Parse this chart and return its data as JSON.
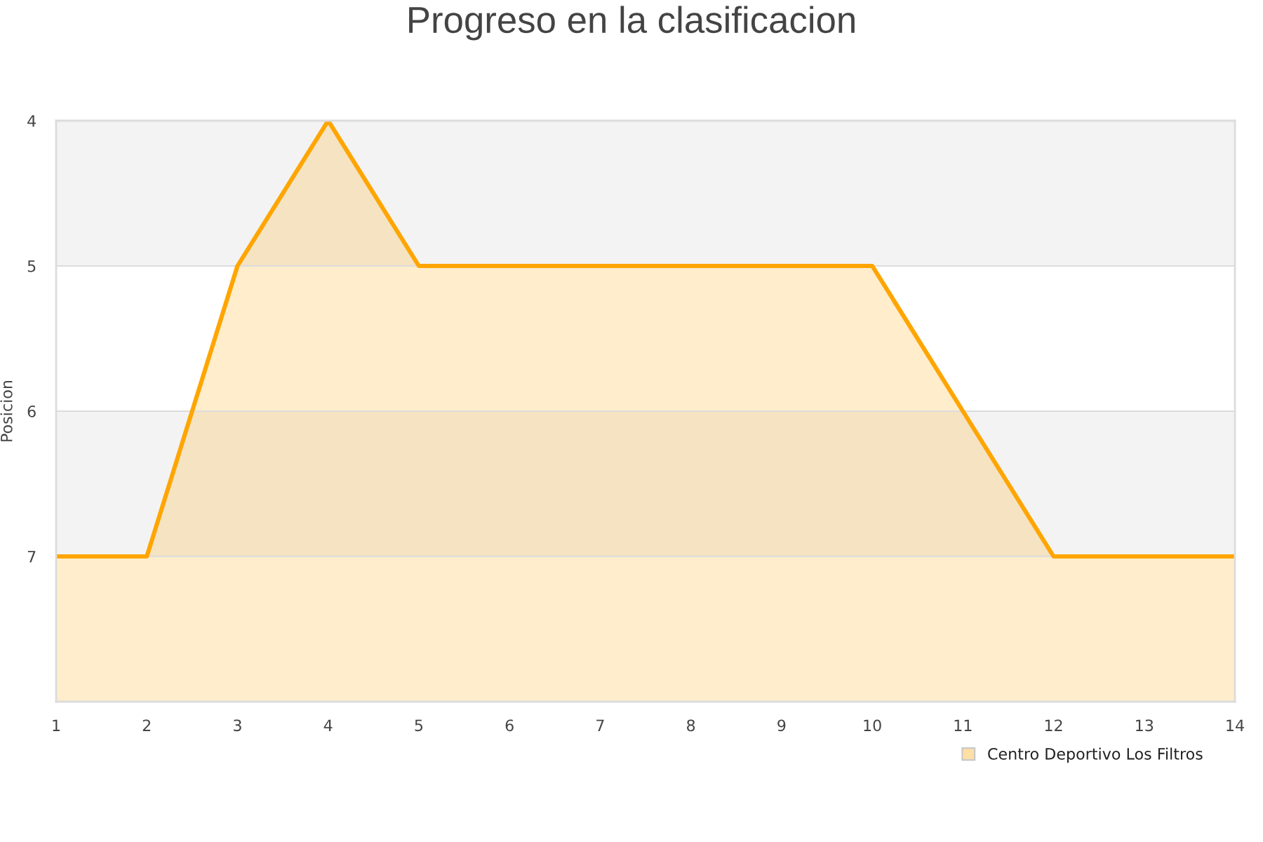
{
  "chart_data": {
    "type": "area",
    "title": "Progreso en la clasificacion",
    "ylabel": "Posicion",
    "x": [
      1,
      2,
      3,
      4,
      5,
      6,
      7,
      8,
      9,
      10,
      11,
      12,
      13,
      14
    ],
    "series": [
      {
        "name": "Centro Deportivo Los Filtros",
        "color": "#ffa500",
        "values": [
          7,
          7,
          5,
          4,
          5,
          5,
          5,
          5,
          5,
          5,
          6,
          7,
          7,
          7
        ]
      }
    ],
    "xlim": [
      1,
      14
    ],
    "xticks": [
      1,
      2,
      3,
      4,
      5,
      6,
      7,
      8,
      9,
      10,
      11,
      12,
      13,
      14
    ],
    "ylim": [
      8,
      4
    ],
    "yticks": [
      4,
      5,
      6,
      7
    ],
    "bands": [
      {
        "axis": "y",
        "from": 4,
        "to": 5,
        "color": "#f3f3f3"
      },
      {
        "axis": "y",
        "from": 6,
        "to": 7,
        "color": "#f3f3f3"
      }
    ],
    "grid": "y",
    "legend": "bottom right"
  }
}
